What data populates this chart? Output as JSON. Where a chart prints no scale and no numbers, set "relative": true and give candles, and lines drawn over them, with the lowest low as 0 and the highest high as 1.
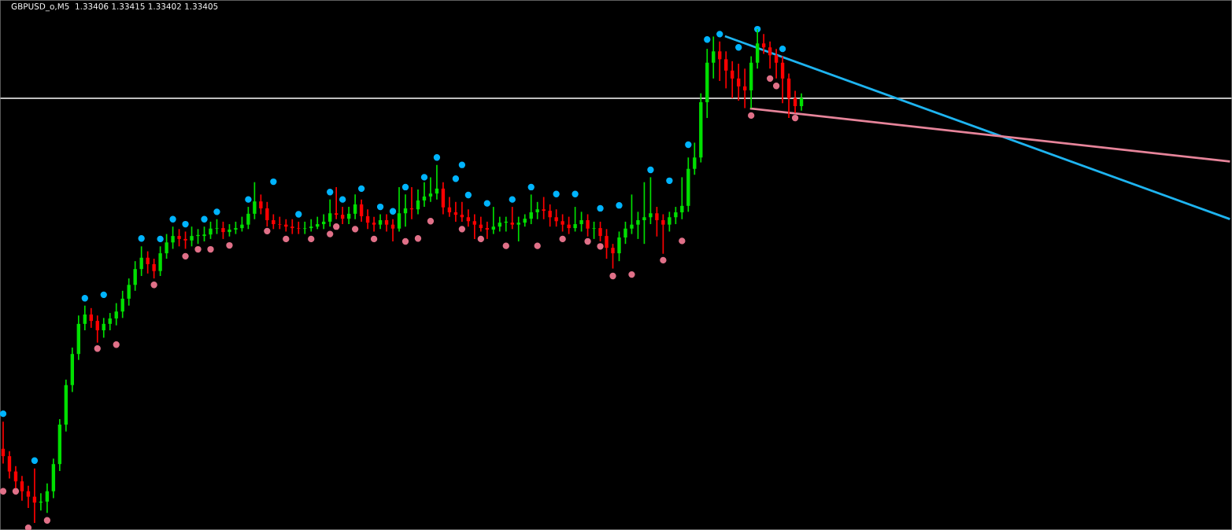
{
  "chart_data": {
    "type": "candlestick",
    "title": "GBPUSD_o,M5  1.33406 1.33415 1.33402 1.33405",
    "relative": true,
    "tick_labels": false,
    "categories": [
      null,
      null,
      null,
      null,
      null,
      null,
      null,
      null,
      null,
      null,
      null,
      null,
      null,
      null,
      null,
      null,
      null,
      null,
      null,
      null,
      null,
      null,
      null,
      null,
      null,
      null,
      null,
      null,
      null,
      null,
      null,
      null,
      null,
      null,
      null,
      null,
      null,
      null,
      null,
      null,
      null,
      null,
      null,
      null,
      null,
      null,
      null,
      null,
      null,
      null,
      null,
      null,
      null,
      null,
      null,
      null,
      null,
      null,
      null,
      null,
      null,
      null,
      null,
      null,
      null,
      null,
      null,
      null,
      null,
      null,
      null,
      null,
      null,
      null,
      null,
      null,
      null,
      null,
      null,
      null,
      null,
      null,
      null,
      null,
      null,
      null,
      null,
      null,
      null,
      null,
      null,
      null,
      null,
      null,
      null,
      null,
      null,
      null,
      null,
      null,
      null,
      null,
      null,
      null,
      null,
      null,
      null,
      null,
      null,
      null,
      null,
      null,
      null,
      null,
      null,
      null,
      null,
      null,
      null,
      null,
      null,
      null,
      null,
      null,
      null,
      null,
      null,
      null,
      null,
      null,
      null,
      null,
      null,
      null,
      null,
      null,
      null,
      null,
      null,
      null,
      null,
      null,
      null,
      null,
      null,
      null,
      null,
      null,
      null,
      null,
      null,
      null,
      null,
      null,
      null,
      null,
      null,
      null,
      null,
      null,
      null,
      null,
      null,
      null,
      null,
      null,
      null,
      null,
      null,
      null,
      null,
      null,
      null,
      null,
      null,
      null,
      null,
      null,
      null,
      null,
      null,
      null,
      null,
      null,
      null,
      null,
      null,
      null,
      null,
      null,
      null,
      null,
      null,
      null,
      null,
      null
    ],
    "ref_lines": [
      {
        "axis": "y",
        "value": 0.86,
        "color": "#ffffff"
      }
    ],
    "series": [
      {
        "ohlc": [
          [
            0.15,
            0.205,
            0.12,
            0.135
          ],
          [
            0.135,
            0.145,
            0.09,
            0.104
          ],
          [
            0.104,
            0.115,
            0.07,
            0.084
          ],
          [
            0.084,
            0.095,
            0.045,
            0.064
          ],
          [
            0.064,
            0.075,
            0.03,
            0.053
          ],
          [
            0.053,
            0.11,
            0.0,
            0.041
          ],
          [
            0.041,
            0.06,
            0.025,
            0.043
          ],
          [
            0.043,
            0.08,
            0.02,
            0.064
          ],
          [
            0.064,
            0.13,
            0.05,
            0.119
          ],
          [
            0.119,
            0.21,
            0.105,
            0.199
          ],
          [
            0.199,
            0.29,
            0.185,
            0.279
          ],
          [
            0.279,
            0.355,
            0.265,
            0.342
          ],
          [
            0.342,
            0.42,
            0.33,
            0.403
          ],
          [
            0.403,
            0.44,
            0.39,
            0.422
          ],
          [
            0.422,
            0.435,
            0.395,
            0.409
          ],
          [
            0.409,
            0.42,
            0.365,
            0.39
          ],
          [
            0.39,
            0.415,
            0.375,
            0.403
          ],
          [
            0.403,
            0.425,
            0.39,
            0.414
          ],
          [
            0.414,
            0.445,
            0.4,
            0.428
          ],
          [
            0.428,
            0.47,
            0.415,
            0.454
          ],
          [
            0.454,
            0.495,
            0.44,
            0.482
          ],
          [
            0.482,
            0.53,
            0.47,
            0.514
          ],
          [
            0.514,
            0.56,
            0.5,
            0.537
          ],
          [
            0.537,
            0.55,
            0.505,
            0.524
          ],
          [
            0.524,
            0.535,
            0.495,
            0.51
          ],
          [
            0.51,
            0.56,
            0.5,
            0.546
          ],
          [
            0.546,
            0.585,
            0.535,
            0.568
          ],
          [
            0.568,
            0.6,
            0.555,
            0.581
          ],
          [
            0.581,
            0.595,
            0.56,
            0.575
          ],
          [
            0.575,
            0.59,
            0.555,
            0.572
          ],
          [
            0.572,
            0.6,
            0.56,
            0.581
          ],
          [
            0.581,
            0.595,
            0.565,
            0.583
          ],
          [
            0.581,
            0.6,
            0.57,
            0.584
          ],
          [
            0.584,
            0.61,
            0.575,
            0.596
          ],
          [
            0.596,
            0.615,
            0.585,
            0.597
          ],
          [
            0.597,
            0.61,
            0.575,
            0.589
          ],
          [
            0.589,
            0.605,
            0.58,
            0.594
          ],
          [
            0.594,
            0.61,
            0.585,
            0.597
          ],
          [
            0.597,
            0.62,
            0.59,
            0.604
          ],
          [
            0.604,
            0.64,
            0.595,
            0.626
          ],
          [
            0.626,
            0.69,
            0.615,
            0.651
          ],
          [
            0.651,
            0.665,
            0.625,
            0.637
          ],
          [
            0.637,
            0.65,
            0.6,
            0.613
          ],
          [
            0.613,
            0.625,
            0.595,
            0.605
          ],
          [
            0.605,
            0.62,
            0.595,
            0.604
          ],
          [
            0.604,
            0.615,
            0.59,
            0.6
          ],
          [
            0.6,
            0.615,
            0.585,
            0.597
          ],
          [
            0.597,
            0.61,
            0.585,
            0.596
          ],
          [
            0.596,
            0.61,
            0.585,
            0.597
          ],
          [
            0.597,
            0.615,
            0.59,
            0.6
          ],
          [
            0.6,
            0.62,
            0.595,
            0.605
          ],
          [
            0.605,
            0.625,
            0.595,
            0.61
          ],
          [
            0.61,
            0.655,
            0.6,
            0.627
          ],
          [
            0.627,
            0.68,
            0.615,
            0.624
          ],
          [
            0.624,
            0.64,
            0.605,
            0.616
          ],
          [
            0.616,
            0.64,
            0.605,
            0.626
          ],
          [
            0.626,
            0.665,
            0.615,
            0.645
          ],
          [
            0.645,
            0.655,
            0.61,
            0.621
          ],
          [
            0.621,
            0.635,
            0.595,
            0.608
          ],
          [
            0.608,
            0.62,
            0.59,
            0.604
          ],
          [
            0.604,
            0.625,
            0.595,
            0.613
          ],
          [
            0.613,
            0.625,
            0.59,
            0.604
          ],
          [
            0.604,
            0.615,
            0.57,
            0.596
          ],
          [
            0.596,
            0.68,
            0.59,
            0.627
          ],
          [
            0.627,
            0.665,
            0.6,
            0.637
          ],
          [
            0.637,
            0.68,
            0.615,
            0.635
          ],
          [
            0.635,
            0.675,
            0.625,
            0.653
          ],
          [
            0.653,
            0.69,
            0.64,
            0.661
          ],
          [
            0.661,
            0.7,
            0.65,
            0.667
          ],
          [
            0.667,
            0.725,
            0.655,
            0.677
          ],
          [
            0.677,
            0.69,
            0.625,
            0.639
          ],
          [
            0.639,
            0.66,
            0.62,
            0.629
          ],
          [
            0.629,
            0.65,
            0.61,
            0.624
          ],
          [
            0.624,
            0.65,
            0.61,
            0.619
          ],
          [
            0.619,
            0.635,
            0.6,
            0.611
          ],
          [
            0.611,
            0.625,
            0.575,
            0.604
          ],
          [
            0.604,
            0.62,
            0.59,
            0.597
          ],
          [
            0.597,
            0.61,
            0.575,
            0.594
          ],
          [
            0.594,
            0.64,
            0.585,
            0.6
          ],
          [
            0.6,
            0.62,
            0.59,
            0.608
          ],
          [
            0.608,
            0.62,
            0.59,
            0.61
          ],
          [
            0.608,
            0.64,
            0.595,
            0.604
          ],
          [
            0.604,
            0.62,
            0.57,
            0.608
          ],
          [
            0.608,
            0.625,
            0.6,
            0.616
          ],
          [
            0.616,
            0.665,
            0.605,
            0.629
          ],
          [
            0.629,
            0.65,
            0.615,
            0.635
          ],
          [
            0.635,
            0.66,
            0.615,
            0.632
          ],
          [
            0.632,
            0.645,
            0.6,
            0.619
          ],
          [
            0.619,
            0.635,
            0.6,
            0.611
          ],
          [
            0.611,
            0.625,
            0.59,
            0.604
          ],
          [
            0.604,
            0.62,
            0.585,
            0.597
          ],
          [
            0.597,
            0.64,
            0.59,
            0.605
          ],
          [
            0.605,
            0.63,
            0.59,
            0.613
          ],
          [
            0.613,
            0.625,
            0.58,
            0.596
          ],
          [
            0.596,
            0.61,
            0.575,
            0.597
          ],
          [
            0.597,
            0.61,
            0.57,
            0.581
          ],
          [
            0.581,
            0.595,
            0.535,
            0.557
          ],
          [
            0.557,
            0.565,
            0.515,
            0.546
          ],
          [
            0.546,
            0.59,
            0.53,
            0.578
          ],
          [
            0.578,
            0.61,
            0.565,
            0.596
          ],
          [
            0.596,
            0.665,
            0.585,
            0.604
          ],
          [
            0.604,
            0.63,
            0.575,
            0.613
          ],
          [
            0.613,
            0.69,
            0.565,
            0.619
          ],
          [
            0.619,
            0.7,
            0.605,
            0.627
          ],
          [
            0.627,
            0.64,
            0.58,
            0.613
          ],
          [
            0.613,
            0.625,
            0.545,
            0.604
          ],
          [
            0.604,
            0.63,
            0.59,
            0.619
          ],
          [
            0.619,
            0.64,
            0.605,
            0.629
          ],
          [
            0.629,
            0.7,
            0.615,
            0.642
          ],
          [
            0.642,
            0.74,
            0.63,
            0.717
          ],
          [
            0.717,
            0.77,
            0.705,
            0.74
          ],
          [
            0.74,
            0.87,
            0.73,
            0.852
          ],
          [
            0.852,
            0.96,
            0.82,
            0.932
          ],
          [
            0.932,
            0.985,
            0.9,
            0.955
          ],
          [
            0.955,
            0.975,
            0.895,
            0.939
          ],
          [
            0.939,
            0.955,
            0.88,
            0.916
          ],
          [
            0.916,
            0.935,
            0.86,
            0.9
          ],
          [
            0.9,
            0.93,
            0.855,
            0.884
          ],
          [
            0.884,
            0.92,
            0.84,
            0.876
          ],
          [
            0.876,
            0.945,
            0.84,
            0.932
          ],
          [
            0.932,
            1.0,
            0.92,
            0.971
          ],
          [
            0.971,
            0.99,
            0.95,
            0.963
          ],
          [
            0.963,
            0.975,
            0.92,
            0.947
          ],
          [
            0.947,
            0.96,
            0.9,
            0.932
          ],
          [
            0.932,
            0.945,
            0.85,
            0.9
          ],
          [
            0.9,
            0.91,
            0.82,
            0.86
          ],
          [
            0.86,
            0.875,
            0.83,
            0.844
          ],
          [
            0.844,
            0.87,
            0.835,
            0.86
          ],
          null,
          null,
          null,
          null,
          null,
          null,
          null,
          null,
          null,
          null,
          null,
          null,
          null,
          null,
          null,
          null,
          null,
          null,
          null,
          null,
          null,
          null,
          null,
          null,
          null,
          null,
          null,
          null,
          null,
          null,
          null,
          null,
          null,
          null,
          null,
          null,
          null,
          null,
          null,
          null,
          null,
          null,
          null,
          null,
          null,
          null,
          null,
          null,
          null,
          null,
          null,
          null,
          null,
          null,
          null,
          null,
          null,
          null,
          null,
          null,
          null,
          null,
          null,
          null,
          null,
          null,
          null,
          null
        ],
        "colors": [
          "#ff0000",
          "#ff0000",
          "#ff0000",
          "#ff0000",
          "#ff0000",
          "#ff0000",
          "#00e000",
          "#00e000",
          "#00e000",
          "#00e000",
          "#00e000",
          "#00e000",
          "#00e000",
          "#00e000",
          "#ff0000",
          "#ff0000",
          "#00e000",
          "#00e000",
          "#00e000",
          "#00e000",
          "#00e000",
          "#00e000",
          "#00e000",
          "#ff0000",
          "#ff0000",
          "#00e000",
          "#00e000",
          "#00e000",
          "#ff0000",
          "#ff0000",
          "#00e000",
          "#00e000",
          "#00e000",
          "#00e000",
          "#00e000",
          "#ff0000",
          "#00e000",
          "#00e000",
          "#00e000",
          "#00e000",
          "#00e000",
          "#ff0000",
          "#ff0000",
          "#ff0000",
          "#ff0000",
          "#ff0000",
          "#ff0000",
          "#ff0000",
          "#00e000",
          "#00e000",
          "#00e000",
          "#00e000",
          "#00e000",
          "#ff0000",
          "#ff0000",
          "#00e000",
          "#00e000",
          "#ff0000",
          "#ff0000",
          "#ff0000",
          "#00e000",
          "#ff0000",
          "#ff0000",
          "#00e000",
          "#00e000",
          "#ff0000",
          "#00e000",
          "#00e000",
          "#00e000",
          "#00e000",
          "#ff0000",
          "#ff0000",
          "#ff0000",
          "#ff0000",
          "#ff0000",
          "#ff0000",
          "#ff0000",
          "#ff0000",
          "#00e000",
          "#00e000",
          "#00e000",
          "#ff0000",
          "#00e000",
          "#00e000",
          "#00e000",
          "#00e000",
          "#ff0000",
          "#ff0000",
          "#ff0000",
          "#ff0000",
          "#ff0000",
          "#00e000",
          "#00e000",
          "#ff0000",
          "#00e000",
          "#ff0000",
          "#ff0000",
          "#ff0000",
          "#00e000",
          "#00e000",
          "#00e000",
          "#00e000",
          "#00e000",
          "#00e000",
          "#ff0000",
          "#ff0000",
          "#00e000",
          "#00e000",
          "#00e000",
          "#00e000",
          "#00e000",
          "#00e000",
          "#00e000",
          "#00e000",
          "#ff0000",
          "#ff0000",
          "#ff0000",
          "#ff0000",
          "#ff0000",
          "#00e000",
          "#00e000",
          "#ff0000",
          "#ff0000",
          "#ff0000",
          "#ff0000",
          "#ff0000",
          "#ff0000",
          "#00e000",
          null,
          null,
          null,
          null,
          null,
          null,
          null,
          null,
          null,
          null,
          null,
          null,
          null,
          null,
          null,
          null,
          null,
          null,
          null,
          null,
          null,
          null,
          null,
          null,
          null,
          null,
          null,
          null,
          null,
          null,
          null,
          null,
          null,
          null,
          null,
          null,
          null,
          null,
          null,
          null,
          null,
          null,
          null,
          null,
          null,
          null,
          null,
          null,
          null,
          null,
          null,
          null,
          null,
          null,
          null,
          null,
          null,
          null,
          null,
          null,
          null,
          null,
          null,
          null,
          null,
          null,
          null,
          null
        ]
      },
      {
        "type": "scatter",
        "color": "#00b4ff",
        "marker": "circle",
        "values": [
          0.221,
          null,
          null,
          null,
          null,
          0.126,
          null,
          null,
          null,
          null,
          null,
          null,
          null,
          0.455,
          null,
          null,
          0.462,
          null,
          null,
          null,
          null,
          null,
          0.576,
          null,
          null,
          0.575,
          null,
          0.615,
          null,
          0.605,
          null,
          null,
          0.615,
          null,
          0.63,
          null,
          null,
          null,
          null,
          0.655,
          null,
          null,
          null,
          0.691,
          null,
          null,
          null,
          0.625,
          null,
          null,
          null,
          null,
          0.67,
          null,
          0.655,
          null,
          null,
          0.677,
          null,
          null,
          0.64,
          null,
          0.631,
          null,
          0.68,
          null,
          null,
          0.7,
          null,
          0.74,
          null,
          null,
          0.697,
          0.725,
          0.664,
          null,
          null,
          0.647,
          null,
          null,
          null,
          0.655,
          null,
          null,
          0.68,
          null,
          null,
          null,
          0.666,
          null,
          null,
          0.666,
          null,
          null,
          null,
          0.637,
          null,
          null,
          0.643,
          null,
          null,
          null,
          null,
          0.715,
          null,
          null,
          0.693,
          null,
          null,
          0.766,
          null,
          null,
          0.979,
          null,
          0.99,
          null,
          null,
          0.963,
          null,
          null,
          1.0,
          null,
          null,
          null,
          0.96,
          null,
          null,
          null,
          null,
          null,
          null,
          null,
          null,
          null,
          null,
          null,
          null,
          null,
          null,
          null,
          null,
          null,
          null,
          null,
          null,
          null,
          null,
          null,
          null,
          null,
          null,
          null,
          null,
          null,
          null,
          null,
          null,
          null,
          null,
          null,
          null,
          null,
          null,
          null,
          null,
          null,
          null,
          null,
          null,
          null,
          null,
          null,
          null,
          null,
          null,
          null,
          null,
          null,
          null,
          null,
          null,
          null,
          null,
          null,
          null,
          null,
          null,
          null,
          null,
          null,
          null,
          null,
          null,
          null,
          null,
          null
        ]
      },
      {
        "type": "scatter",
        "color": "#e07088",
        "marker": "circle",
        "values": [
          0.064,
          null,
          0.064,
          null,
          -0.01,
          null,
          null,
          0.005,
          null,
          null,
          null,
          null,
          null,
          null,
          null,
          0.353,
          null,
          null,
          0.361,
          null,
          null,
          null,
          null,
          null,
          0.482,
          null,
          null,
          null,
          null,
          0.54,
          null,
          0.554,
          null,
          0.554,
          null,
          null,
          0.562,
          null,
          null,
          null,
          null,
          null,
          0.591,
          null,
          null,
          0.575,
          null,
          null,
          null,
          0.575,
          null,
          null,
          0.585,
          0.6,
          null,
          null,
          0.595,
          null,
          null,
          0.575,
          null,
          null,
          null,
          null,
          0.57,
          null,
          0.576,
          null,
          0.611,
          null,
          null,
          null,
          null,
          0.595,
          null,
          null,
          0.575,
          null,
          null,
          null,
          0.561,
          null,
          null,
          null,
          null,
          0.561,
          null,
          null,
          null,
          0.575,
          null,
          null,
          null,
          0.57,
          null,
          0.56,
          null,
          0.5,
          null,
          null,
          0.503,
          null,
          null,
          null,
          null,
          0.532,
          null,
          null,
          0.571,
          null,
          null,
          null,
          null,
          null,
          null,
          null,
          null,
          null,
          null,
          0.825,
          null,
          null,
          0.9,
          0.885,
          null,
          null,
          0.82,
          null,
          null,
          null,
          null,
          null,
          null,
          null,
          null,
          null,
          null,
          null,
          null,
          null,
          null,
          null,
          null,
          null,
          null,
          null,
          null,
          null,
          null,
          null,
          null,
          null,
          null,
          null,
          null,
          null,
          null,
          null,
          null,
          null,
          null,
          null,
          null,
          null,
          null,
          null,
          null,
          null,
          null,
          null,
          null,
          null,
          null,
          null,
          null,
          null,
          null,
          null,
          null,
          null,
          null,
          null,
          null,
          null,
          null,
          null,
          null,
          null,
          null,
          null,
          null,
          null,
          null,
          null,
          null,
          null
        ]
      },
      {
        "type": "line",
        "color": "#1eb4f0",
        "values": [
          null,
          null,
          null,
          null,
          null,
          null,
          null,
          null,
          null,
          null,
          null,
          null,
          null,
          null,
          null,
          null,
          null,
          null,
          null,
          null,
          null,
          null,
          null,
          null,
          null,
          null,
          null,
          null,
          null,
          null,
          null,
          null,
          null,
          null,
          null,
          null,
          null,
          null,
          null,
          null,
          null,
          null,
          null,
          null,
          null,
          null,
          null,
          null,
          null,
          null,
          null,
          null,
          null,
          null,
          null,
          null,
          null,
          null,
          null,
          null,
          null,
          null,
          null,
          null,
          null,
          null,
          null,
          null,
          null,
          null,
          null,
          null,
          null,
          null,
          null,
          null,
          null,
          null,
          null,
          null,
          null,
          null,
          null,
          null,
          null,
          null,
          null,
          null,
          null,
          null,
          null,
          null,
          null,
          null,
          null,
          null,
          null,
          null,
          null,
          null,
          null,
          null,
          null,
          null,
          null,
          null,
          null,
          null,
          null,
          null,
          null,
          null,
          null,
          null,
          null,
          0.985,
          null,
          null,
          null,
          null,
          null,
          null,
          null,
          null,
          null,
          null,
          null,
          null,
          null,
          null,
          null,
          null,
          null,
          null,
          null,
          null,
          null,
          null,
          null,
          null,
          null,
          null,
          null,
          null,
          null,
          null,
          null,
          null,
          null,
          null,
          null,
          null,
          null,
          null,
          null,
          null,
          null,
          null,
          null,
          null,
          null,
          null,
          null,
          null,
          null,
          null,
          null,
          null,
          null,
          null,
          null,
          null,
          null,
          null,
          null,
          null,
          null,
          null,
          null,
          null,
          null,
          null,
          null,
          null,
          null,
          null,
          null,
          null,
          null,
          null,
          null,
          null,
          null,
          null,
          null,
          0.616
        ]
      },
      {
        "type": "line",
        "color": "#e6849a",
        "values": [
          null,
          null,
          null,
          null,
          null,
          null,
          null,
          null,
          null,
          null,
          null,
          null,
          null,
          null,
          null,
          null,
          null,
          null,
          null,
          null,
          null,
          null,
          null,
          null,
          null,
          null,
          null,
          null,
          null,
          null,
          null,
          null,
          null,
          null,
          null,
          null,
          null,
          null,
          null,
          null,
          null,
          null,
          null,
          null,
          null,
          null,
          null,
          null,
          null,
          null,
          null,
          null,
          null,
          null,
          null,
          null,
          null,
          null,
          null,
          null,
          null,
          null,
          null,
          null,
          null,
          null,
          null,
          null,
          null,
          null,
          null,
          null,
          null,
          null,
          null,
          null,
          null,
          null,
          null,
          null,
          null,
          null,
          null,
          null,
          null,
          null,
          null,
          null,
          null,
          null,
          null,
          null,
          null,
          null,
          null,
          null,
          null,
          null,
          null,
          null,
          null,
          null,
          null,
          null,
          null,
          null,
          null,
          null,
          null,
          null,
          null,
          null,
          null,
          null,
          null,
          null,
          null,
          null,
          null,
          0.839,
          null,
          null,
          null,
          null,
          null,
          null,
          null,
          null,
          null,
          null,
          null,
          null,
          null,
          null,
          null,
          null,
          null,
          null,
          null,
          null,
          null,
          null,
          null,
          null,
          null,
          null,
          null,
          null,
          null,
          null,
          null,
          null,
          null,
          null,
          null,
          null,
          null,
          null,
          null,
          null,
          null,
          null,
          null,
          null,
          null,
          null,
          null,
          null,
          null,
          null,
          null,
          null,
          null,
          null,
          null,
          null,
          null,
          null,
          null,
          null,
          null,
          null,
          null,
          null,
          null,
          null,
          null,
          null,
          null,
          null,
          null,
          null,
          null,
          null,
          null,
          0.732
        ]
      }
    ]
  }
}
